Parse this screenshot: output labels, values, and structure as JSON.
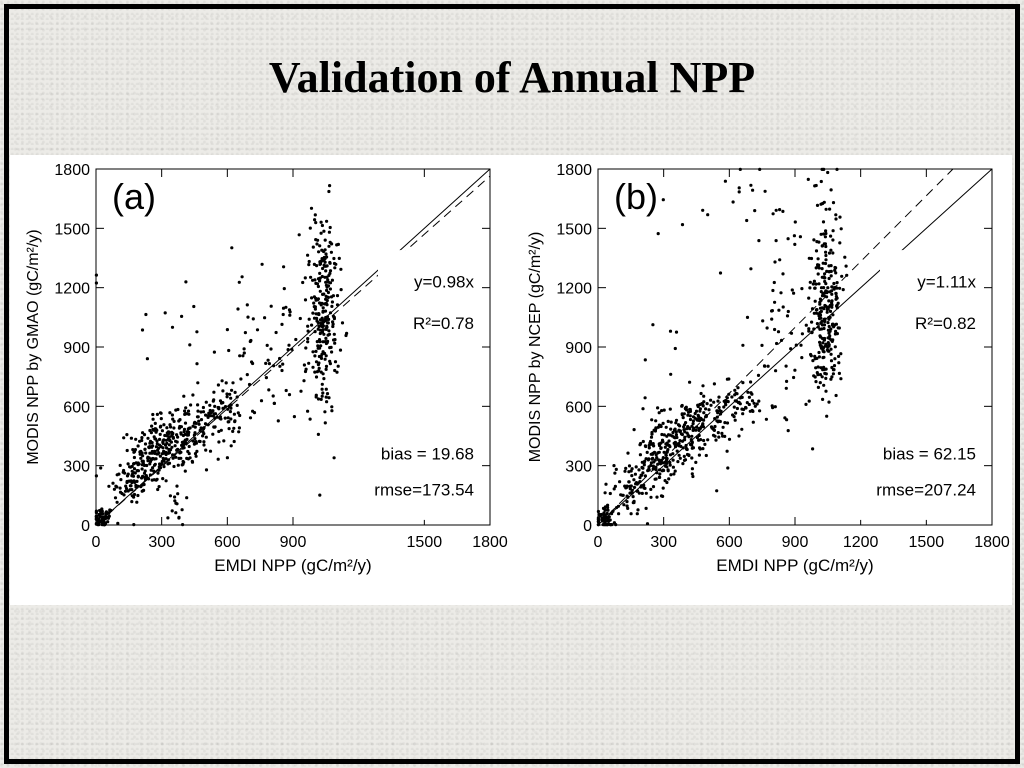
{
  "slide": {
    "title": "Validation of Annual NPP"
  },
  "chart_data": [
    {
      "type": "scatter",
      "panel_label": "(a)",
      "xlabel": "EMDI NPP (gC/m²/y)",
      "ylabel": "MODIS NPP by GMAO (gC/m²/y)",
      "xlim": [
        0,
        1800
      ],
      "ylim": [
        0,
        1800
      ],
      "xticks": [
        "0",
        "300",
        "600",
        "900",
        "1500",
        "1800"
      ],
      "yticks": [
        "0",
        "300",
        "600",
        "900",
        "1200",
        "1500",
        "1800"
      ],
      "annotations": {
        "fit": "y=0.98x",
        "r2": "R²=0.78",
        "bias": "bias = 19.68",
        "rmse": "rmse=173.54"
      },
      "fit_slope": 0.98,
      "grid": false,
      "clusters": [
        {
          "cx": 30,
          "cy": 30,
          "sx": 25,
          "sy": 30,
          "n": 60
        },
        {
          "cx": 150,
          "cy": 220,
          "sx": 50,
          "sy": 60,
          "n": 70
        },
        {
          "cx": 250,
          "cy": 350,
          "sx": 50,
          "sy": 90,
          "n": 120
        },
        {
          "cx": 350,
          "cy": 420,
          "sx": 60,
          "sy": 80,
          "n": 120
        },
        {
          "cx": 450,
          "cy": 480,
          "sx": 60,
          "sy": 70,
          "n": 90
        },
        {
          "cx": 600,
          "cy": 560,
          "sx": 60,
          "sy": 80,
          "n": 60
        },
        {
          "cx": 800,
          "cy": 900,
          "sx": 80,
          "sy": 200,
          "n": 60
        },
        {
          "cx": 1040,
          "cy": 1000,
          "sx": 35,
          "sy": 220,
          "n": 200
        },
        {
          "cx": 1030,
          "cy": 1300,
          "sx": 40,
          "sy": 170,
          "n": 60
        },
        {
          "cx": 400,
          "cy": 1000,
          "sx": 250,
          "sy": 220,
          "n": 25
        },
        {
          "cx": 370,
          "cy": 100,
          "sx": 20,
          "sy": 60,
          "n": 15
        }
      ]
    },
    {
      "type": "scatter",
      "panel_label": "(b)",
      "xlabel": "EMDI NPP (gC/m²/y)",
      "ylabel": "MODIS NPP by NCEP (gC/m²/y)",
      "xlim": [
        0,
        1800
      ],
      "ylim": [
        0,
        1800
      ],
      "xticks": [
        "0",
        "300",
        "600",
        "900",
        "1200",
        "1500",
        "1800"
      ],
      "yticks": [
        "0",
        "300",
        "600",
        "900",
        "1200",
        "1500",
        "1800"
      ],
      "annotations": {
        "fit": "y=1.11x",
        "r2": "R²=0.82",
        "bias": "bias = 62.15",
        "rmse": "rmse=207.24"
      },
      "fit_slope": 1.11,
      "grid": false,
      "clusters": [
        {
          "cx": 30,
          "cy": 30,
          "sx": 25,
          "sy": 30,
          "n": 60
        },
        {
          "cx": 150,
          "cy": 180,
          "sx": 50,
          "sy": 60,
          "n": 70
        },
        {
          "cx": 270,
          "cy": 340,
          "sx": 50,
          "sy": 80,
          "n": 120
        },
        {
          "cx": 380,
          "cy": 440,
          "sx": 60,
          "sy": 80,
          "n": 120
        },
        {
          "cx": 500,
          "cy": 540,
          "sx": 60,
          "sy": 70,
          "n": 90
        },
        {
          "cx": 650,
          "cy": 620,
          "sx": 50,
          "sy": 60,
          "n": 50
        },
        {
          "cx": 850,
          "cy": 900,
          "sx": 80,
          "sy": 250,
          "n": 60
        },
        {
          "cx": 1040,
          "cy": 1000,
          "sx": 35,
          "sy": 180,
          "n": 200
        },
        {
          "cx": 1040,
          "cy": 1350,
          "sx": 40,
          "sy": 200,
          "n": 80
        },
        {
          "cx": 750,
          "cy": 1600,
          "sx": 200,
          "sy": 150,
          "n": 30
        },
        {
          "cx": 350,
          "cy": 600,
          "sx": 150,
          "sy": 250,
          "n": 20
        }
      ]
    }
  ]
}
